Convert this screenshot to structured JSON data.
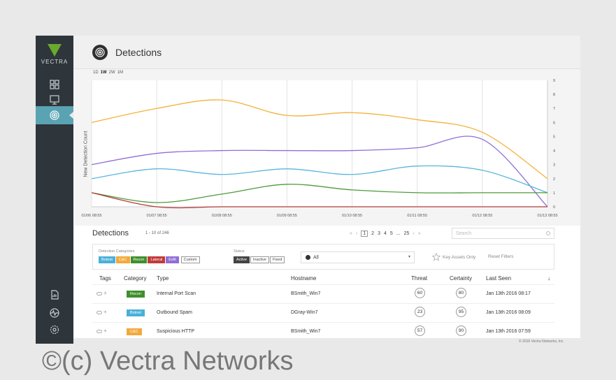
{
  "sidebar": {
    "brand": "VECTRA",
    "items": [
      {
        "icon": "dashboard-grid-icon",
        "active": false
      },
      {
        "icon": "monitor-icon",
        "active": false
      },
      {
        "icon": "detections-target-icon",
        "active": true
      },
      {
        "icon": "report-icon",
        "active": false
      },
      {
        "icon": "network-health-icon",
        "active": false
      },
      {
        "icon": "settings-gear-icon",
        "active": false
      }
    ]
  },
  "header": {
    "title": "Detections"
  },
  "time_range": {
    "options": [
      "1D",
      "1W",
      "2W",
      "1M"
    ],
    "selected": "1W"
  },
  "chart_data": {
    "type": "line",
    "ylabel": "New Detection Count",
    "ylim": [
      0,
      9
    ],
    "yticks": [
      "0",
      "1",
      "2",
      "3",
      "4",
      "5",
      "6",
      "7",
      "8",
      "9"
    ],
    "x": [
      "01/06 08:55",
      "01/07 08:55",
      "01/08 08:55",
      "01/09 08:55",
      "01/10 08:55",
      "01/11 08:55",
      "01/12 08:55",
      "01/13 08:55"
    ],
    "series": [
      {
        "color": "#f2b23a",
        "values": [
          6.0,
          7.0,
          7.6,
          6.5,
          6.7,
          6.2,
          5.3,
          2.0
        ]
      },
      {
        "color": "#8f6fd6",
        "values": [
          3.0,
          3.8,
          4.0,
          4.0,
          4.0,
          4.2,
          4.8,
          0.0
        ]
      },
      {
        "color": "#59b6dc",
        "values": [
          2.0,
          2.7,
          2.3,
          2.7,
          2.3,
          2.9,
          2.6,
          1.0
        ]
      },
      {
        "color": "#4c9a38",
        "values": [
          1.0,
          0.3,
          0.9,
          1.6,
          1.2,
          1.0,
          1.0,
          1.0
        ]
      },
      {
        "color": "#b73a3a",
        "values": [
          1.0,
          0.0,
          0.0,
          0.0,
          0.0,
          0.0,
          0.0,
          0.0
        ]
      }
    ],
    "grid": true
  },
  "detections": {
    "title": "Detections",
    "range_text": "1 - 10 of 246",
    "pager": {
      "prev_first": "«",
      "prev": "‹",
      "pages": [
        "1",
        "2",
        "3",
        "4",
        "5"
      ],
      "current": "1",
      "ellipsis": "...",
      "last": "25",
      "next": "›",
      "next_last": "»"
    },
    "search_placeholder": "Search",
    "filters": {
      "categories_label": "Detection Categories",
      "categories": [
        {
          "label": "Botnet",
          "color": "#4ab0d9"
        },
        {
          "label": "C&C",
          "color": "#f2a93b"
        },
        {
          "label": "Recon",
          "color": "#3f8f2d"
        },
        {
          "label": "Lateral",
          "color": "#c23a3a"
        },
        {
          "label": "Exfil",
          "color": "#8f6fd6"
        }
      ],
      "custom_label": "Custom",
      "status_label": "Status",
      "status_options": [
        "Active",
        "Inactive",
        "Fixed"
      ],
      "status_selected": "Active",
      "select_value": "All",
      "key_assets_label": "Key Assets Only",
      "reset_label": "Reset Filters"
    },
    "columns": [
      "Tags",
      "Category",
      "Type",
      "Hostname",
      "Threat",
      "Certainty",
      "Last Seen"
    ],
    "rows": [
      {
        "category": "Recon",
        "category_color": "#3f8f2d",
        "type": "Internal Port Scan",
        "hostname": "BSmith_Win7",
        "threat": "60",
        "certainty": "80",
        "last_seen": "Jan 13th 2016 08:17"
      },
      {
        "category": "Botnet",
        "category_color": "#4ab0d9",
        "type": "Outbound Spam",
        "hostname": "DGray-Win7",
        "threat": "23",
        "certainty": "95",
        "last_seen": "Jan 13th 2016 08:09"
      },
      {
        "category": "C&C",
        "category_color": "#f2a93b",
        "type": "Suspicious HTTP",
        "hostname": "BSmith_Win7",
        "threat": "57",
        "certainty": "90",
        "last_seen": "Jan 13th 2016 07:59"
      }
    ],
    "sort_indicator": "↓"
  },
  "footer": {
    "copyright": "© 2016 Vectra Networks, Inc."
  },
  "watermark": "©(c) Vectra Networks"
}
